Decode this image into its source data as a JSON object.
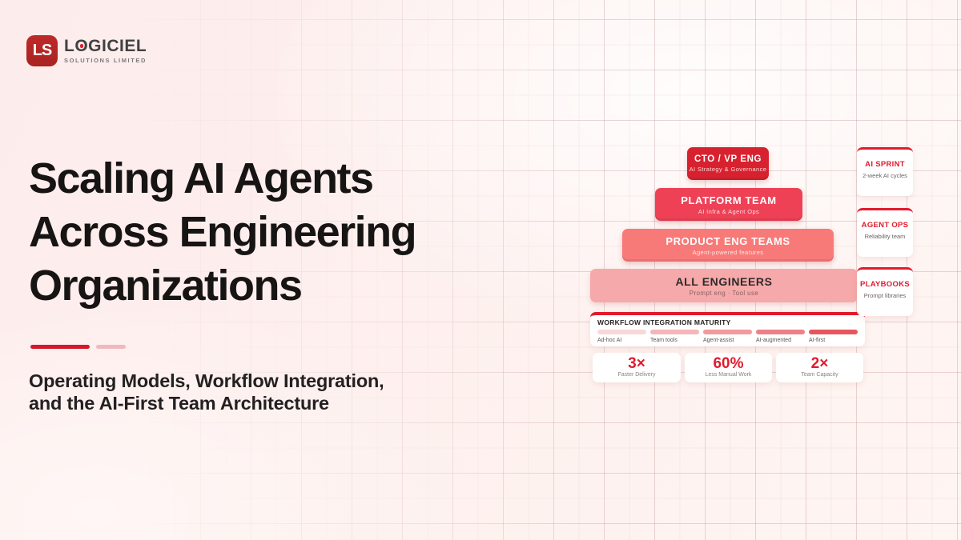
{
  "colors": {
    "accent": "#e31a2c",
    "logo_red": "#bd2a28",
    "level_cto": "#d8212f",
    "level_platform": "#ee4156",
    "level_product": "#f87a78",
    "level_all": "#f6a9aa",
    "divider_strong": "#d6182a",
    "divider_soft": "#f2b9bd",
    "maturity_1": "#f8d8d9",
    "maturity_2": "#f4b6b9",
    "maturity_3": "#f29a9d",
    "maturity_4": "#ee8187",
    "maturity_5": "#e65660"
  },
  "logo": {
    "mark": "LS",
    "name": "LOGICIEL",
    "tagline": "SOLUTIONS LIMITED"
  },
  "hero": {
    "title_line1": "Scaling AI Agents",
    "title_line2": "Across Engineering",
    "title_line3": "Organizations",
    "subtitle_line1": "Operating Models, Workflow Integration,",
    "subtitle_line2": "and the AI-First Team Architecture"
  },
  "pyramid": {
    "levels": [
      {
        "title": "CTO / VP ENG",
        "subtitle": "AI Strategy & Governance"
      },
      {
        "title": "PLATFORM TEAM",
        "subtitle": "AI Infra & Agent Ops"
      },
      {
        "title": "PRODUCT ENG TEAMS",
        "subtitle": "Agent-powered features"
      },
      {
        "title": "ALL ENGINEERS",
        "subtitle": "Prompt eng · Tool use"
      }
    ]
  },
  "maturity": {
    "title": "WORKFLOW INTEGRATION MATURITY",
    "stages": [
      {
        "label": "Ad-hoc AI"
      },
      {
        "label": "Team tools"
      },
      {
        "label": "Agent-assist"
      },
      {
        "label": "AI-augmented"
      },
      {
        "label": "AI-first"
      }
    ]
  },
  "stats": [
    {
      "value": "3×",
      "label": "Faster Delivery"
    },
    {
      "value": "60%",
      "label": "Less Manual Work"
    },
    {
      "value": "2×",
      "label": "Team Capacity"
    }
  ],
  "side_cards": [
    {
      "title": "AI SPRINT",
      "subtitle": "2-week AI cycles"
    },
    {
      "title": "AGENT OPS",
      "subtitle": "Reliability team"
    },
    {
      "title": "PLAYBOOKS",
      "subtitle": "Prompt libraries"
    }
  ]
}
